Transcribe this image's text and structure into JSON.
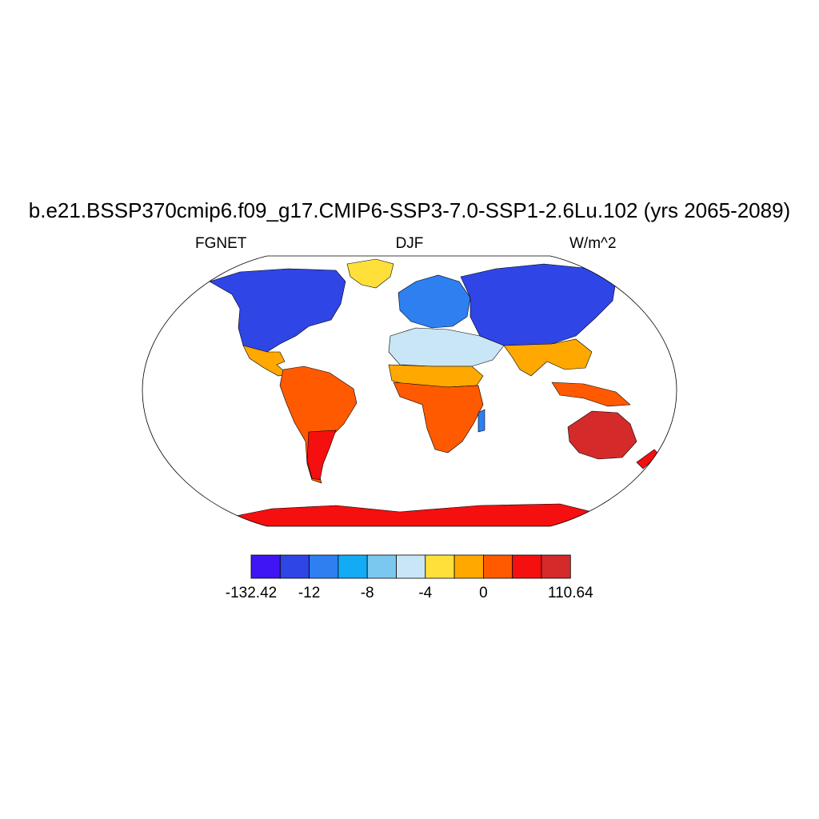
{
  "title": "b.e21.BSSP370cmip6.f09_g17.CMIP6-SSP3-7.0-SSP1-2.6Lu.102 (yrs 2065-2089)",
  "left_label": "FGNET",
  "center_label": "DJF",
  "right_label": "W/m^2",
  "colorbar": {
    "colors": [
      "#3f14f5",
      "#2f45e6",
      "#2e7ff0",
      "#13abf5",
      "#7ac8ef",
      "#c9e6f6",
      "#ffe03a",
      "#ffa800",
      "#ff5a00",
      "#f50f0f",
      "#d42a2a"
    ],
    "labels": [
      {
        "text": "-132.42",
        "edge": 0
      },
      {
        "text": "-12",
        "edge": 2
      },
      {
        "text": "-8",
        "edge": 4
      },
      {
        "text": "-4",
        "edge": 6
      },
      {
        "text": "0",
        "edge": 8
      },
      {
        "text": "110.64",
        "edge": 11
      }
    ]
  },
  "regions": [
    {
      "name": "north-america",
      "color_index": 1
    },
    {
      "name": "greenland",
      "color_index": 6
    },
    {
      "name": "south-america",
      "color_index": 8
    },
    {
      "name": "europe",
      "color_index": 2
    },
    {
      "name": "north-africa",
      "color_index": 5
    },
    {
      "name": "southern-africa",
      "color_index": 8
    },
    {
      "name": "asia",
      "color_index": 1
    },
    {
      "name": "south-asia",
      "color_index": 7
    },
    {
      "name": "australia",
      "color_index": 10
    },
    {
      "name": "antarctica",
      "color_index": 9
    }
  ]
}
